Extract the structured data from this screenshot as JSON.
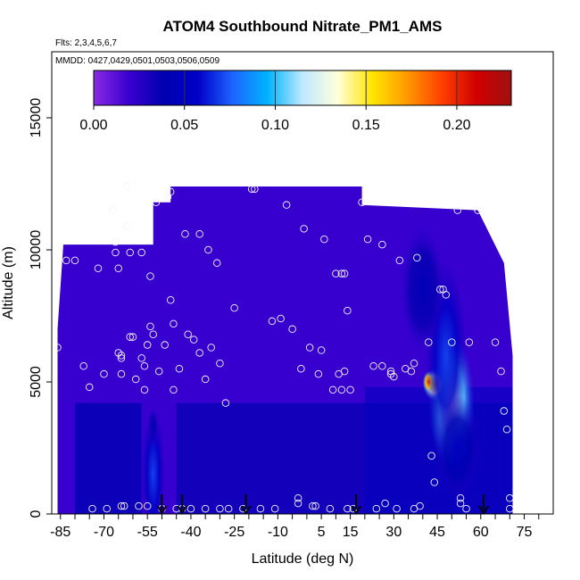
{
  "chart_data": {
    "type": "heatmap",
    "title": "ATOM4 Southbound Nitrate_PM1_AMS",
    "flights_label": "Flts: 2,3,4,5,6,7",
    "dates_label": "MMDD: 0427,0429,0501,0503,0506,0509",
    "xlabel": "Latitude (deg N)",
    "ylabel": "Altitude (m)",
    "xlim": [
      -88,
      85
    ],
    "ylim": [
      0,
      17500
    ],
    "x_ticks": [
      "-85",
      "-70",
      "-55",
      "-40",
      "-25",
      "-10",
      "5",
      "15",
      "30",
      "45",
      "60",
      "75"
    ],
    "x_tick_values": [
      -85,
      -70,
      -55,
      -40,
      -25,
      -10,
      5,
      15,
      30,
      45,
      60,
      75
    ],
    "y_ticks": [
      "0",
      "5000",
      "10000",
      "15000"
    ],
    "y_tick_values": [
      0,
      5000,
      10000,
      15000
    ],
    "colorbar": {
      "min": 0,
      "max": 0.23,
      "ticks": [
        "0.00",
        "0.05",
        "0.10",
        "0.15",
        "0.20"
      ],
      "tick_values": [
        0.0,
        0.05,
        0.1,
        0.15,
        0.2
      ],
      "colors": [
        "#8a2be2",
        "#3a00d0",
        "#0000b0",
        "#0000c8",
        "#1e64ff",
        "#00b4ff",
        "#bfe8ff",
        "#ffffdc",
        "#ffe600",
        "#ff9a00",
        "#ff4000",
        "#d00000",
        "#a01010"
      ]
    },
    "arrows_latitude": [
      -50,
      -43,
      -21,
      17,
      61
    ],
    "outline": {
      "lat_min": -86,
      "lat_max": 71,
      "top_left_alt": 10200,
      "top_alt": 12400,
      "top_lat_start": -47,
      "top_lat_end": 19
    },
    "fields": [
      {
        "lat": 50,
        "alt": 4200,
        "lat_w": 8,
        "alt_w": 2600,
        "value": 0.13
      },
      {
        "lat": 44,
        "alt": 4900,
        "lat_w": 4,
        "alt_w": 600,
        "value": 0.17
      },
      {
        "lat": 42,
        "alt": 5000,
        "lat_w": 2,
        "alt_w": 400,
        "value": 0.2
      },
      {
        "lat": 48,
        "alt": 6000,
        "lat_w": 7,
        "alt_w": 3500,
        "value": 0.07
      },
      {
        "lat": 40,
        "alt": 8500,
        "lat_w": 8,
        "alt_w": 2500,
        "value": 0.045
      },
      {
        "lat": 52,
        "alt": 2500,
        "lat_w": 8,
        "alt_w": 2000,
        "value": 0.05
      },
      {
        "lat": -53,
        "alt": 1500,
        "lat_w": 4,
        "alt_w": 2500,
        "value": 0.07
      },
      {
        "lat": -53,
        "alt": 3300,
        "lat_w": 2,
        "alt_w": 800,
        "value": 0.04
      }
    ],
    "observations": [
      [
        -86,
        6300
      ],
      [
        -83,
        9600
      ],
      [
        -80,
        9600
      ],
      [
        -77,
        5600
      ],
      [
        -75,
        4800
      ],
      [
        -74,
        200
      ],
      [
        -72,
        9300
      ],
      [
        -70,
        5300
      ],
      [
        -69,
        200
      ],
      [
        -67,
        11500
      ],
      [
        -66,
        10300
      ],
      [
        -66,
        9900
      ],
      [
        -65,
        9300
      ],
      [
        -65,
        6100
      ],
      [
        -64,
        5900
      ],
      [
        -64,
        6000
      ],
      [
        -64,
        5300
      ],
      [
        -64,
        300
      ],
      [
        -63,
        300
      ],
      [
        -62,
        12400
      ],
      [
        -62,
        10900
      ],
      [
        -61,
        9900
      ],
      [
        -61,
        6700
      ],
      [
        -60,
        6700
      ],
      [
        -59,
        5100
      ],
      [
        -58,
        300
      ],
      [
        -57,
        9900
      ],
      [
        -57,
        5900
      ],
      [
        -56,
        5600
      ],
      [
        -56,
        4700
      ],
      [
        -55,
        6400
      ],
      [
        -55,
        300
      ],
      [
        -54,
        9000
      ],
      [
        -54,
        7100
      ],
      [
        -53,
        6800
      ],
      [
        -52,
        11800
      ],
      [
        -51,
        5400
      ],
      [
        -50,
        200
      ],
      [
        -49,
        6400
      ],
      [
        -48,
        12000
      ],
      [
        -47,
        12200
      ],
      [
        -47,
        8100
      ],
      [
        -46,
        7200
      ],
      [
        -46,
        4700
      ],
      [
        -45,
        200
      ],
      [
        -44,
        5500
      ],
      [
        -43,
        200
      ],
      [
        -42,
        10600
      ],
      [
        -41,
        6800
      ],
      [
        -40,
        200
      ],
      [
        -39,
        6600
      ],
      [
        -37,
        10600
      ],
      [
        -37,
        6100
      ],
      [
        -35,
        5100
      ],
      [
        -35,
        200
      ],
      [
        -34,
        10000
      ],
      [
        -33,
        6300
      ],
      [
        -31,
        9500
      ],
      [
        -30,
        5700
      ],
      [
        -30,
        200
      ],
      [
        -28,
        4200
      ],
      [
        -27,
        200
      ],
      [
        -25,
        7800
      ],
      [
        -22,
        200
      ],
      [
        -19,
        12300
      ],
      [
        -18,
        12300
      ],
      [
        -16,
        200
      ],
      [
        -12,
        7300
      ],
      [
        -11,
        200
      ],
      [
        -9,
        7400
      ],
      [
        -7,
        11700
      ],
      [
        -5,
        7000
      ],
      [
        -3,
        400
      ],
      [
        -3,
        600
      ],
      [
        -2,
        5500
      ],
      [
        -1,
        10800
      ],
      [
        1,
        6300
      ],
      [
        2,
        300
      ],
      [
        3,
        300
      ],
      [
        4,
        5300
      ],
      [
        5,
        6200
      ],
      [
        6,
        10400
      ],
      [
        8,
        200
      ],
      [
        9,
        4700
      ],
      [
        10,
        9100
      ],
      [
        11,
        5300
      ],
      [
        12,
        9100
      ],
      [
        12,
        4700
      ],
      [
        13,
        5400
      ],
      [
        13,
        9100
      ],
      [
        14,
        7700
      ],
      [
        14,
        200
      ],
      [
        15,
        4700
      ],
      [
        16,
        200
      ],
      [
        19,
        11800
      ],
      [
        21,
        10400
      ],
      [
        23,
        5600
      ],
      [
        24,
        200
      ],
      [
        26,
        5600
      ],
      [
        26,
        10200
      ],
      [
        27,
        400
      ],
      [
        29,
        5400
      ],
      [
        29,
        5300
      ],
      [
        30,
        5200
      ],
      [
        31,
        200
      ],
      [
        32,
        9600
      ],
      [
        34,
        5500
      ],
      [
        36,
        5400
      ],
      [
        37,
        5700
      ],
      [
        37,
        200
      ],
      [
        38,
        9700
      ],
      [
        39,
        300
      ],
      [
        42,
        6500
      ],
      [
        43,
        2200
      ],
      [
        44,
        1200
      ],
      [
        46,
        8500
      ],
      [
        47,
        8500
      ],
      [
        48,
        8300
      ],
      [
        50,
        6500
      ],
      [
        52,
        11500
      ],
      [
        53,
        600
      ],
      [
        53,
        400
      ],
      [
        55,
        200
      ],
      [
        56,
        6500
      ],
      [
        59,
        11500
      ],
      [
        65,
        6500
      ],
      [
        67,
        5400
      ],
      [
        68,
        3900
      ],
      [
        69,
        3200
      ],
      [
        70,
        200
      ],
      [
        70,
        600
      ]
    ]
  }
}
